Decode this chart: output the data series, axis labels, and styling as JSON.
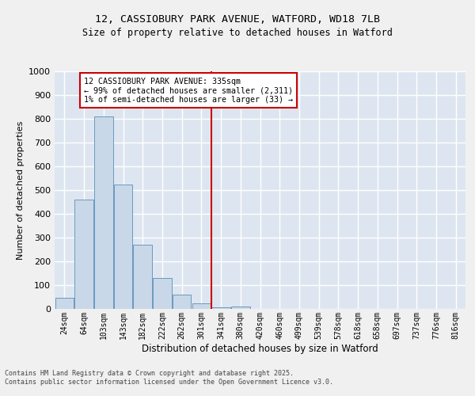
{
  "title_line1": "12, CASSIOBURY PARK AVENUE, WATFORD, WD18 7LB",
  "title_line2": "Size of property relative to detached houses in Watford",
  "xlabel": "Distribution of detached houses by size in Watford",
  "ylabel": "Number of detached properties",
  "categories": [
    "24sqm",
    "64sqm",
    "103sqm",
    "143sqm",
    "182sqm",
    "222sqm",
    "262sqm",
    "301sqm",
    "341sqm",
    "380sqm",
    "420sqm",
    "460sqm",
    "499sqm",
    "539sqm",
    "578sqm",
    "618sqm",
    "658sqm",
    "697sqm",
    "737sqm",
    "776sqm",
    "816sqm"
  ],
  "values": [
    47,
    460,
    810,
    525,
    270,
    130,
    60,
    25,
    7,
    10,
    0,
    0,
    0,
    0,
    0,
    0,
    0,
    0,
    0,
    0,
    0
  ],
  "bar_color": "#c8d8e8",
  "bar_edge_color": "#5b8db8",
  "vline_color": "#cc0000",
  "annotation_text": "12 CASSIOBURY PARK AVENUE: 335sqm\n← 99% of detached houses are smaller (2,311)\n1% of semi-detached houses are larger (33) →",
  "annotation_box_color": "#ffffff",
  "annotation_box_edge_color": "#cc0000",
  "background_color": "#dde6f0",
  "grid_color": "#ffffff",
  "footer_text": "Contains HM Land Registry data © Crown copyright and database right 2025.\nContains public sector information licensed under the Open Government Licence v3.0.",
  "fig_background": "#f0f0f0",
  "ylim": [
    0,
    1000
  ],
  "yticks": [
    0,
    100,
    200,
    300,
    400,
    500,
    600,
    700,
    800,
    900,
    1000
  ]
}
